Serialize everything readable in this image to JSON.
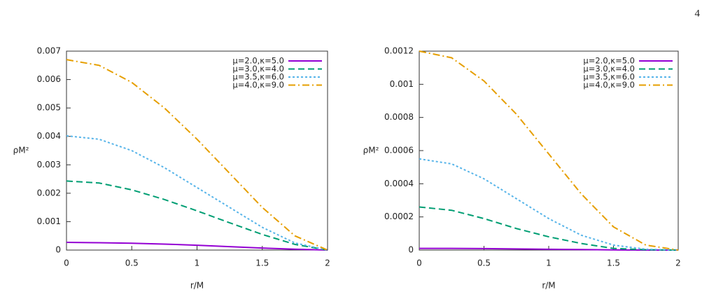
{
  "page_number": "4",
  "chart_data": [
    {
      "type": "line",
      "xlabel": "r/M",
      "ylabel": "ρM²",
      "x": [
        0,
        0.25,
        0.5,
        0.75,
        1,
        1.25,
        1.5,
        1.75,
        2
      ],
      "xlim": [
        0,
        2
      ],
      "xticks": [
        0,
        0.5,
        1,
        1.5,
        2
      ],
      "ylim": [
        0,
        0.007
      ],
      "yticks": [
        0,
        0.001,
        0.002,
        0.003,
        0.004,
        0.005,
        0.006,
        0.007
      ],
      "legend": "upper right",
      "series": [
        {
          "name": "μ=2.0,κ=5.0",
          "color": "#9400d3",
          "dash": "solid",
          "values": [
            0.00027,
            0.00026,
            0.00024,
            0.00021,
            0.00017,
            0.00012,
            7e-05,
            3e-05,
            0
          ]
        },
        {
          "name": "μ=3.0,κ=4.0",
          "color": "#009e73",
          "dash": "dashed",
          "values": [
            0.00243,
            0.00236,
            0.00212,
            0.00178,
            0.00138,
            0.00096,
            0.00055,
            0.0002,
            0
          ]
        },
        {
          "name": "μ=3.5,κ=6.0",
          "color": "#56b4e9",
          "dash": "dotted",
          "values": [
            0.00402,
            0.0039,
            0.0035,
            0.0029,
            0.0022,
            0.0015,
            0.0008,
            0.00025,
            0
          ]
        },
        {
          "name": "μ=4.0,κ=9.0",
          "color": "#e69f00",
          "dash": "dashdot",
          "values": [
            0.0067,
            0.0065,
            0.0059,
            0.005,
            0.0039,
            0.0027,
            0.0015,
            0.0005,
            0
          ]
        }
      ]
    },
    {
      "type": "line",
      "xlabel": "r/M",
      "ylabel": "ρM²",
      "x": [
        0,
        0.25,
        0.5,
        0.75,
        1,
        1.25,
        1.5,
        1.75,
        2
      ],
      "xlim": [
        0,
        2
      ],
      "xticks": [
        0,
        0.5,
        1,
        1.5,
        2
      ],
      "ylim": [
        0,
        0.0012
      ],
      "yticks": [
        0,
        0.0002,
        0.0004,
        0.0006,
        0.0008,
        0.001,
        0.0012
      ],
      "legend": "upper right",
      "series": [
        {
          "name": "μ=2.0,κ=5.0",
          "color": "#9400d3",
          "dash": "solid",
          "values": [
            1e-05,
            1e-05,
            9e-06,
            7e-06,
            5e-06,
            3e-06,
            1e-06,
            0,
            0
          ]
        },
        {
          "name": "μ=3.0,κ=4.0",
          "color": "#009e73",
          "dash": "dashed",
          "values": [
            0.00026,
            0.00024,
            0.00019,
            0.00013,
            8e-05,
            4e-05,
            1e-05,
            2e-06,
            0
          ]
        },
        {
          "name": "μ=3.5,κ=6.0",
          "color": "#56b4e9",
          "dash": "dotted",
          "values": [
            0.00055,
            0.00052,
            0.00043,
            0.00031,
            0.00019,
            9e-05,
            3e-05,
            5e-06,
            0
          ]
        },
        {
          "name": "μ=4.0,κ=9.0",
          "color": "#e69f00",
          "dash": "dashdot",
          "values": [
            0.0012,
            0.00116,
            0.00102,
            0.00082,
            0.00058,
            0.00034,
            0.00014,
            3e-05,
            0
          ]
        }
      ]
    }
  ]
}
